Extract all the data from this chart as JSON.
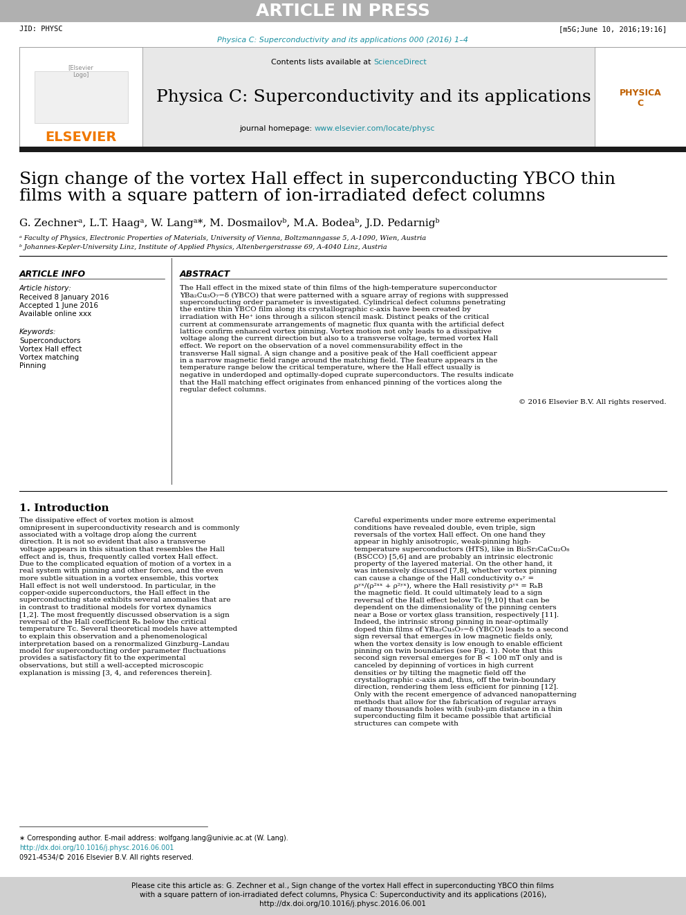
{
  "article_in_press_text": "ARTICLE IN PRESS",
  "article_in_press_bg": "#b0b0b0",
  "jid_text": "JID: PHYSC",
  "msg_text": "[m5G;June 10, 2016;19:16]",
  "journal_ref_text": "Physica C: Superconductivity and its applications 000 (2016) 1–4",
  "journal_ref_color": "#1a8fa0",
  "header_box_bg": "#e8e8e8",
  "contents_text": "Contents lists available at",
  "sciencedirect_text": "ScienceDirect",
  "sciencedirect_color": "#1a8fa0",
  "journal_title": "Physica C: Superconductivity and its applications",
  "journal_homepage_text": "journal homepage:",
  "journal_homepage_url": "www.elsevier.com/locate/physc",
  "journal_homepage_color": "#1a8fa0",
  "elsevier_color": "#f07800",
  "dark_bar_color": "#1a1a1a",
  "article_title_line1": "Sign change of the vortex Hall effect in superconducting YBCO thin",
  "article_title_line2": "films with a square pattern of ion-irradiated defect columns",
  "authors": "G. Zechnerᵃ, L.T. Haagᵃ, W. Langᵃ*, M. Dosmailovᵇ, M.A. Bodeaᵇ, J.D. Pedarnigᵇ",
  "affil_a": "ᵃ Faculty of Physics, Electronic Properties of Materials, University of Vienna, Boltzmanngasse 5, A-1090, Wien, Austria",
  "affil_b": "ᵇ Johannes-Kepler-University Linz, Institute of Applied Physics, Altenbergerstrasse 69, A-4040 Linz, Austria",
  "article_info_title": "ARTICLE INFO",
  "abstract_title": "ABSTRACT",
  "article_history_label": "Article history:",
  "received_text": "Received 8 January 2016",
  "accepted_text": "Accepted 1 June 2016",
  "available_text": "Available online xxx",
  "keywords_label": "Keywords:",
  "kw1": "Superconductors",
  "kw2": "Vortex Hall effect",
  "kw3": "Vortex matching",
  "kw4": "Pinning",
  "abstract_body": "The Hall effect in the mixed state of thin films of the high-temperature superconductor YBa₂Cu₃O₇−δ (YBCO) that were patterned with a square array of regions with suppressed superconducting order parameter is investigated. Cylindrical defect columns penetrating the entire thin YBCO film along its crystallographic c-axis have been created by irradiation with He⁺ ions through a silicon stencil mask. Distinct peaks of the critical current at commensurate arrangements of magnetic flux quanta with the artificial defect lattice confirm enhanced vortex pinning. Vortex motion not only leads to a dissipative voltage along the current direction but also to a transverse voltage, termed vortex Hall effect. We report on the observation of a novel commensurability effect in the transverse Hall signal. A sign change and a positive peak of the Hall coefficient appear in a narrow magnetic field range around the matching field. The feature appears in the temperature range below the critical temperature, where the Hall effect usually is negative in underdoped and optimally-doped cuprate superconductors. The results indicate that the Hall matching effect originates from enhanced pinning of the vortices along the regular defect columns.",
  "copyright_text": "© 2016 Elsevier B.V. All rights reserved.",
  "intro_title": "1. Introduction",
  "intro_col1": "The dissipative effect of vortex motion is almost omnipresent in superconductivity research and is commonly associated with a voltage drop along the current direction. It is not so evident that also a transverse voltage appears in this situation that resembles the Hall effect and is, thus, frequently called vortex Hall effect. Due to the complicated equation of motion of a vortex in a real system with pinning and other forces, and the even more subtle situation in a vortex ensemble, this vortex Hall effect is not well understood. In particular, in the copper-oxide superconductors, the Hall effect in the superconducting state exhibits several anomalies that are in contrast to traditional models for vortex dynamics [1,2]. The most frequently discussed observation is a sign reversal of the Hall coefficient Rₕ below the critical temperature Tᴄ. Several theoretical models have attempted to explain this observation and a phenomenological interpretation based on a renormalized Ginzburg–Landau model for superconducting order parameter fluctuations provides a satisfactory fit to the experimental observations, but still a well-accepted microscopic explanation is missing [3, 4, and references therein].",
  "intro_col2": "Careful experiments under more extreme experimental conditions have revealed double, even triple, sign reversals of the vortex Hall effect. On one hand they appear in highly anisotropic, weak-pinning high-temperature superconductors (HTS), like in Bi₂Sr₂CaCu₂O₈ (BSCCO) [5,6] and are probably an intrinsic electronic property of the layered material. On the other hand, it was intensively discussed [7,8], whether vortex pinning can cause a change of the Hall conductivity σₓʸ = ρʸˣ/(ρ²ˣˣ + ρ²ʸˣ), where the Hall resistivity ρʸˣ = RₕB the magnetic field. It could ultimately lead to a sign reversal of the Hall effect below Tᴄ [9,10] that can be dependent on the dimensionality of the pinning centers near a Bose or vortex glass transition, respectively [11]. Indeed, the intrinsic strong pinning in near-optimally doped thin films of YBa₂Cu₃O₇−δ (YBCO) leads to a second sign reversal that emerges in low magnetic fields only, when the vortex density is low enough to enable efficient pinning on twin boundaries (see Fig. 1). Note that this second sign reversal emerges for B < 100 mT only and is canceled by depinning of vortices in high current densities or by tilting the magnetic field off the crystallographic c-axis and, thus, off the twin-boundary direction, rendering them less efficient for pinning [12].",
  "intro_col2_end": "Only with the recent emergence of advanced nanopatterning methods that allow for the fabrication of regular arrays of many thousands holes with (sub)-μm distance in a thin superconducting film it became possible that artificial structures can compete with",
  "footnote_star": "∗ Corresponding author.",
  "footnote_email": "E-mail address: wolfgang.lang@univie.ac.at (W. Lang).",
  "doi_text": "http://dx.doi.org/10.1016/j.physc.2016.06.001",
  "doi_color": "#1a8fa0",
  "issn_text": "0921-4534/© 2016 Elsevier B.V. All rights reserved.",
  "citation_bar_bg": "#d0d0d0",
  "citation_text": "Please cite this article as: G. Zechner et al., Sign change of the vortex Hall effect in superconducting YBCO thin films with a square pattern of ion-irradiated defect columns, Physica C: Superconductivity and its applications (2016), http://dx.doi.org/10.1016/j.physc.2016.06.001",
  "bg_color": "#ffffff",
  "text_color": "#000000"
}
